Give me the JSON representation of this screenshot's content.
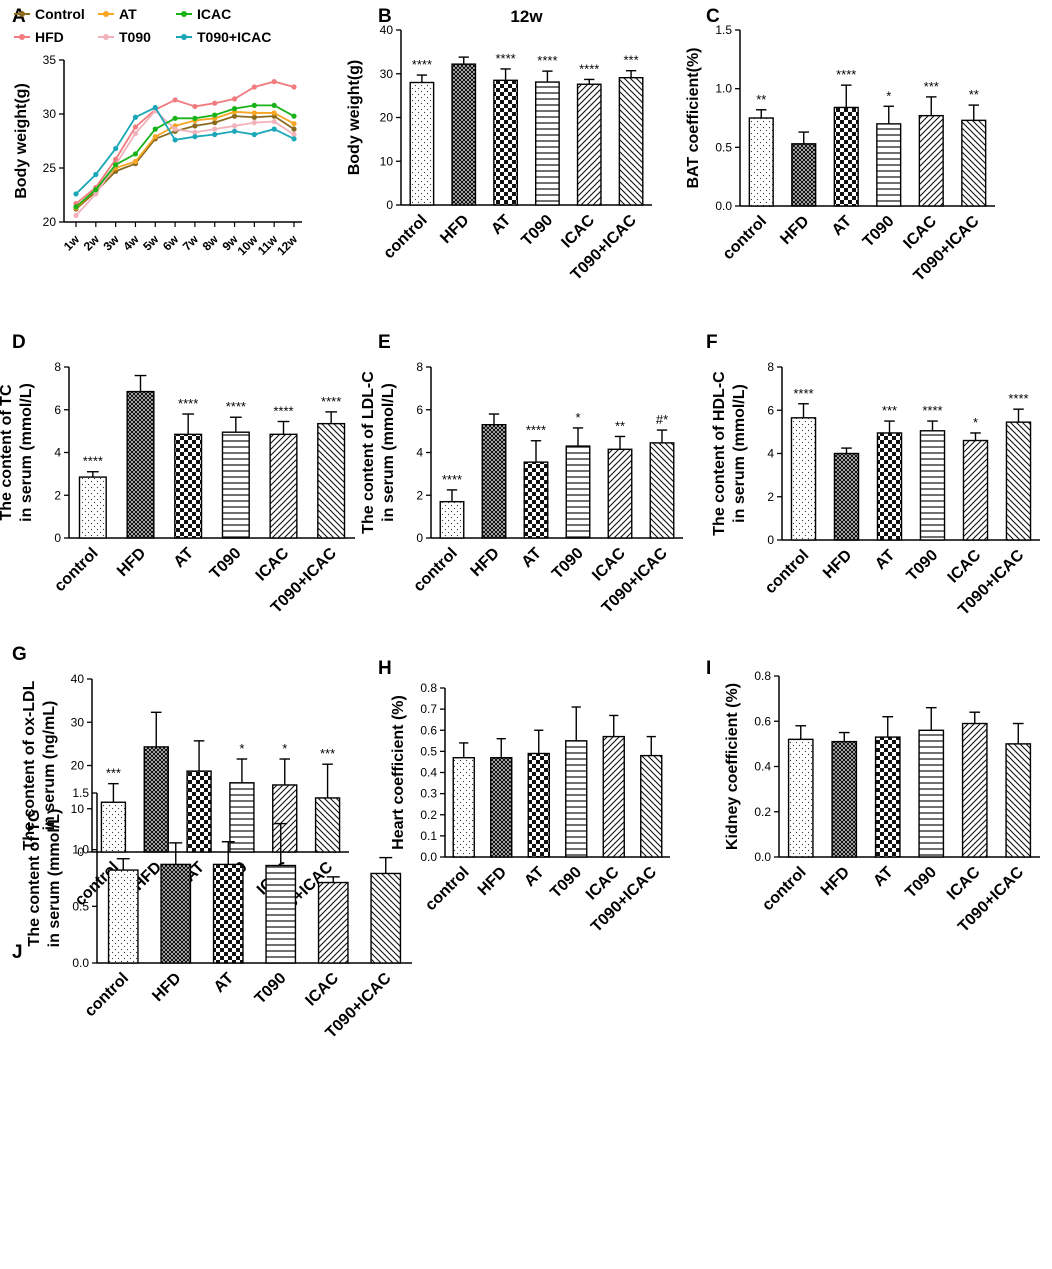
{
  "figure": {
    "description_labels": [
      "A",
      "B",
      "C",
      "D",
      "E",
      "F",
      "G",
      "H",
      "I",
      "J"
    ]
  },
  "colors": {
    "Control": "#8B6A1E",
    "HFD": "#F07C80",
    "AT": "#F5A623",
    "T090": "#F2B2BC",
    "ICAC": "#19B319",
    "T090+ICAC": "#1AA8B8"
  },
  "chart_data": [
    {
      "panel": "A",
      "type": "line",
      "title": "",
      "xlabel": "",
      "ylabel": "Body weight(g)",
      "ylim": [
        20,
        35
      ],
      "yticks": [
        20,
        25,
        30,
        35
      ],
      "x": [
        "1w",
        "2w",
        "3w",
        "4w",
        "5w",
        "6w",
        "7w",
        "8w",
        "9w",
        "10w",
        "11w",
        "12w"
      ],
      "legend": [
        "Control",
        "AT",
        "ICAC",
        "HFD",
        "T090",
        "T090+ICAC"
      ],
      "series": [
        {
          "name": "Control",
          "values": [
            21.2,
            22.8,
            24.7,
            25.4,
            27.7,
            28.4,
            28.9,
            29.2,
            29.8,
            29.7,
            29.8,
            28.6
          ]
        },
        {
          "name": "HFD",
          "values": [
            21.7,
            23.2,
            25.8,
            28.8,
            30.4,
            31.3,
            30.7,
            31.0,
            31.4,
            32.5,
            33.0,
            32.5
          ]
        },
        {
          "name": "AT",
          "values": [
            21.3,
            23.0,
            25.0,
            25.6,
            27.9,
            28.9,
            29.4,
            29.6,
            30.2,
            30.1,
            30.1,
            29.1
          ]
        },
        {
          "name": "T090",
          "values": [
            20.6,
            22.6,
            25.3,
            28.2,
            30.3,
            28.6,
            28.3,
            28.6,
            28.9,
            29.2,
            29.3,
            28.1
          ]
        },
        {
          "name": "ICAC",
          "values": [
            21.4,
            23.0,
            25.3,
            26.3,
            28.6,
            29.6,
            29.6,
            29.9,
            30.5,
            30.8,
            30.8,
            29.8
          ]
        },
        {
          "name": "T090+ICAC",
          "values": [
            22.6,
            24.4,
            26.8,
            29.7,
            30.6,
            27.6,
            27.9,
            28.1,
            28.4,
            28.1,
            28.6,
            27.7
          ]
        }
      ]
    },
    {
      "panel": "B",
      "type": "bar",
      "title": "12w",
      "ylabel": "Body weight(g)",
      "ylim": [
        0,
        40
      ],
      "yticks": [
        0,
        10,
        20,
        30,
        40
      ],
      "categories": [
        "control",
        "HFD",
        "AT",
        "T090",
        "ICAC",
        "T090+ICAC"
      ],
      "values": [
        28,
        32.2,
        28.5,
        28.1,
        27.6,
        29.1
      ],
      "errors": [
        1.7,
        1.6,
        2.6,
        2.5,
        1.1,
        1.6
      ],
      "significance": [
        "****",
        "",
        "****",
        "****",
        "****",
        "***"
      ]
    },
    {
      "panel": "C",
      "type": "bar",
      "title": "",
      "ylabel": "BAT coefficient(%)",
      "ylim": [
        0,
        1.5
      ],
      "yticks": [
        0.0,
        0.5,
        1.0,
        1.5
      ],
      "categories": [
        "control",
        "HFD",
        "AT",
        "T090",
        "ICAC",
        "T090+ICAC"
      ],
      "values": [
        0.75,
        0.53,
        0.84,
        0.7,
        0.77,
        0.73
      ],
      "errors": [
        0.07,
        0.1,
        0.19,
        0.15,
        0.16,
        0.13
      ],
      "significance": [
        "**",
        "",
        "****",
        "*",
        "***",
        "**"
      ]
    },
    {
      "panel": "D",
      "type": "bar",
      "title": "",
      "ylabel": "The content of TC in serum (mmol/L)",
      "ylabel_lines": [
        "The content of TC",
        "in serum (mmol/L)"
      ],
      "ylim": [
        0,
        8
      ],
      "yticks": [
        0,
        2,
        4,
        6,
        8
      ],
      "categories": [
        "control",
        "HFD",
        "AT",
        "T090",
        "ICAC",
        "T090+ICAC"
      ],
      "values": [
        2.85,
        6.85,
        4.85,
        4.95,
        4.85,
        5.35
      ],
      "errors": [
        0.25,
        0.75,
        0.95,
        0.7,
        0.6,
        0.55
      ],
      "significance": [
        "****",
        "",
        "****",
        "****",
        "****",
        "****"
      ]
    },
    {
      "panel": "E",
      "type": "bar",
      "title": "",
      "ylabel": "The content of LDL-C in serum (mmol/L)",
      "ylabel_lines": [
        "The content of LDL-C",
        "in serum (mmol/L)"
      ],
      "ylim": [
        0,
        8
      ],
      "yticks": [
        0,
        2,
        4,
        6,
        8
      ],
      "categories": [
        "control",
        "HFD",
        "AT",
        "T090",
        "ICAC",
        "T090+ICAC"
      ],
      "values": [
        1.7,
        5.3,
        3.55,
        4.3,
        4.15,
        4.45
      ],
      "errors": [
        0.55,
        0.5,
        1.0,
        0.85,
        0.6,
        0.6
      ],
      "significance": [
        "****",
        "",
        "****",
        "*",
        "**",
        "#*"
      ]
    },
    {
      "panel": "F",
      "type": "bar",
      "title": "",
      "ylabel": "The content of HDL-C in serum (mmol/L)",
      "ylabel_lines": [
        "The content of HDL-C",
        "in serum (mmol/L)"
      ],
      "ylim": [
        0,
        8
      ],
      "yticks": [
        0,
        2,
        4,
        6,
        8
      ],
      "categories": [
        "control",
        "HFD",
        "AT",
        "T090",
        "ICAC",
        "T090+ICAC"
      ],
      "values": [
        5.65,
        4.0,
        4.95,
        5.05,
        4.6,
        5.45
      ],
      "errors": [
        0.65,
        0.25,
        0.55,
        0.45,
        0.35,
        0.6
      ],
      "significance": [
        "****",
        "",
        "***",
        "****",
        "*",
        "****"
      ]
    },
    {
      "panel": "G",
      "type": "bar",
      "title": "",
      "ylabel": "The content of ox-LDL in serum (ng/mL)",
      "ylabel_lines": [
        "The content of ox-LDL",
        "in serum (ng/mL)"
      ],
      "ylim": [
        0,
        40
      ],
      "yticks": [
        0,
        10,
        20,
        30,
        40
      ],
      "categories": [
        "control",
        "HFD",
        "AT",
        "T090",
        "ICAC",
        "T090+ICAC"
      ],
      "values": [
        11.5,
        24.3,
        18.7,
        16.0,
        15.5,
        12.5
      ],
      "errors": [
        4.3,
        8.0,
        7.0,
        5.5,
        6.0,
        7.8
      ],
      "significance": [
        "***",
        "",
        "",
        "*",
        "*",
        "***"
      ]
    },
    {
      "panel": "H",
      "type": "bar",
      "title": "",
      "ylabel": "Heart coefficient (%)",
      "ylim": [
        0,
        0.8
      ],
      "yticks": [
        0.0,
        0.1,
        0.2,
        0.3,
        0.4,
        0.5,
        0.6,
        0.7,
        0.8
      ],
      "categories": [
        "control",
        "HFD",
        "AT",
        "T090",
        "ICAC",
        "T090+ICAC"
      ],
      "values": [
        0.47,
        0.47,
        0.49,
        0.55,
        0.57,
        0.48
      ],
      "errors": [
        0.07,
        0.09,
        0.11,
        0.16,
        0.1,
        0.09
      ],
      "significance": [
        "",
        "",
        "",
        "",
        "",
        ""
      ]
    },
    {
      "panel": "I",
      "type": "bar",
      "title": "",
      "ylabel": "Kidney coefficient (%)",
      "ylim": [
        0,
        0.8
      ],
      "yticks": [
        0.0,
        0.2,
        0.4,
        0.6,
        0.8
      ],
      "categories": [
        "control",
        "HFD",
        "AT",
        "T090",
        "ICAC",
        "T090+ICAC"
      ],
      "values": [
        0.52,
        0.51,
        0.53,
        0.56,
        0.59,
        0.5
      ],
      "errors": [
        0.06,
        0.04,
        0.09,
        0.1,
        0.05,
        0.09
      ],
      "significance": [
        "",
        "",
        "",
        "",
        "",
        ""
      ]
    },
    {
      "panel": "J",
      "type": "bar",
      "title": "",
      "ylabel": "The content of TG in serum (mmol/L)",
      "ylabel_lines": [
        "The content of TG",
        "in serum (mmol/L)"
      ],
      "ylim": [
        0,
        1.5
      ],
      "yticks": [
        0.0,
        0.5,
        1.0,
        1.5
      ],
      "categories": [
        "control",
        "HFD",
        "AT",
        "T090",
        "ICAC",
        "T090+ICAC"
      ],
      "values": [
        0.82,
        0.87,
        0.87,
        0.86,
        0.71,
        0.79
      ],
      "errors": [
        0.1,
        0.19,
        0.2,
        0.37,
        0.05,
        0.14
      ],
      "significance": [
        "",
        "",
        "",
        "",
        "",
        ""
      ]
    }
  ]
}
